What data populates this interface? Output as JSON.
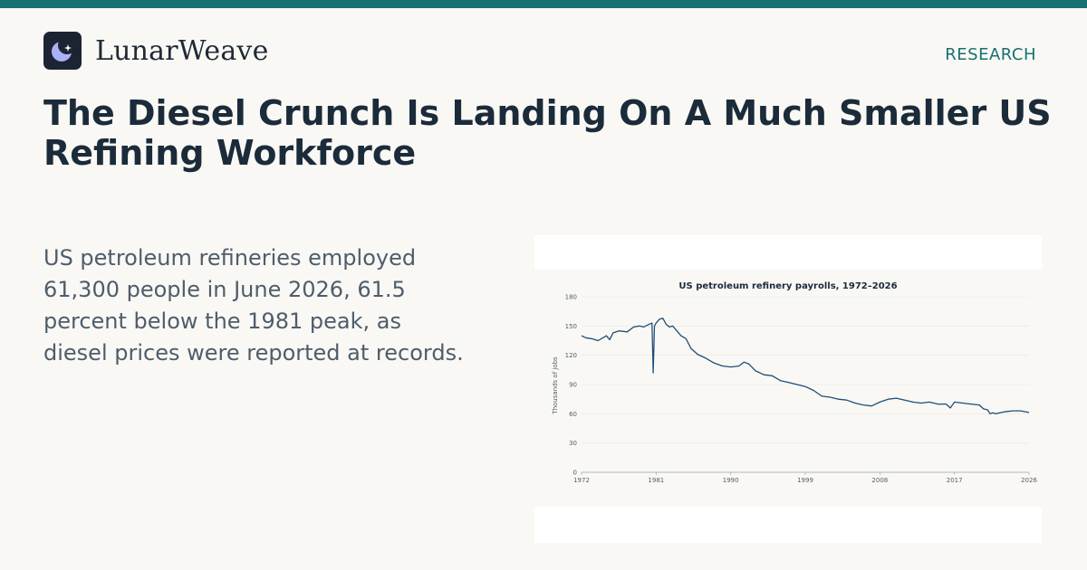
{
  "brand": {
    "name": "LunarWeave",
    "logo_icon": "crescent-moon-star-icon",
    "logo_bg": "#1c2433",
    "logo_fg": "#a9b2f5"
  },
  "nav": {
    "section": "RESEARCH"
  },
  "colors": {
    "accent": "#17716f",
    "headline": "#1b2b3a",
    "body_text": "#4f5d6b",
    "line": "#1f4e79"
  },
  "article": {
    "headline": "The Diesel Crunch Is Landing On A Much Smaller US Refining Workforce",
    "summary": "US petroleum refineries employed 61,300 people in June 2026, 61.5 percent below the 1981 peak, as diesel prices were reported at records."
  },
  "chart_data": {
    "type": "line",
    "title": "US petroleum refinery payrolls, 1972–2026",
    "xlabel": "",
    "ylabel": "Thousands of jobs",
    "xlim": [
      1972,
      2026
    ],
    "ylim": [
      0,
      180
    ],
    "x_ticks": [
      1972,
      1981,
      1990,
      1999,
      2008,
      2017,
      2026
    ],
    "y_ticks": [
      0,
      30,
      60,
      90,
      120,
      150,
      180
    ],
    "grid": "horizontal",
    "series": [
      {
        "x": [
          1972,
          1972.5,
          1973.2,
          1974,
          1975,
          1975.4,
          1975.8,
          1976.5,
          1977.5,
          1978.3,
          1979,
          1979.5,
          1980.2,
          1980.5,
          1980.65,
          1980.8,
          1981,
          1981.4,
          1981.8,
          1982.2,
          1982.6,
          1983,
          1983.5,
          1984,
          1984.6,
          1985.2,
          1986,
          1987,
          1988,
          1989,
          1990,
          1991,
          1991.6,
          1992.2,
          1993,
          1994,
          1995,
          1996,
          1997,
          1998,
          1999,
          2000,
          2001,
          2002,
          2003,
          2004,
          2005,
          2006,
          2007,
          2008,
          2009,
          2010,
          2011,
          2012,
          2013,
          2014,
          2015,
          2016,
          2016.5,
          2017,
          2018,
          2019,
          2020,
          2020.5,
          2021,
          2021.3,
          2021.6,
          2022,
          2023,
          2024,
          2025,
          2026
        ],
        "y": [
          140,
          138,
          137,
          135,
          140,
          136,
          143,
          145,
          144,
          149,
          150,
          149,
          152,
          153,
          102,
          150,
          153,
          157,
          158,
          152,
          149,
          150,
          145,
          140,
          137,
          127,
          121,
          117,
          112,
          109,
          108,
          109,
          113,
          111,
          104,
          100,
          99,
          94,
          92,
          90,
          88,
          84,
          78,
          77,
          75,
          74,
          71,
          69,
          68,
          72,
          75,
          76,
          74,
          72,
          71,
          72,
          70,
          70,
          66,
          72,
          71,
          70,
          69,
          65,
          64,
          60,
          61,
          60,
          62,
          63,
          63,
          61.3
        ]
      }
    ]
  }
}
